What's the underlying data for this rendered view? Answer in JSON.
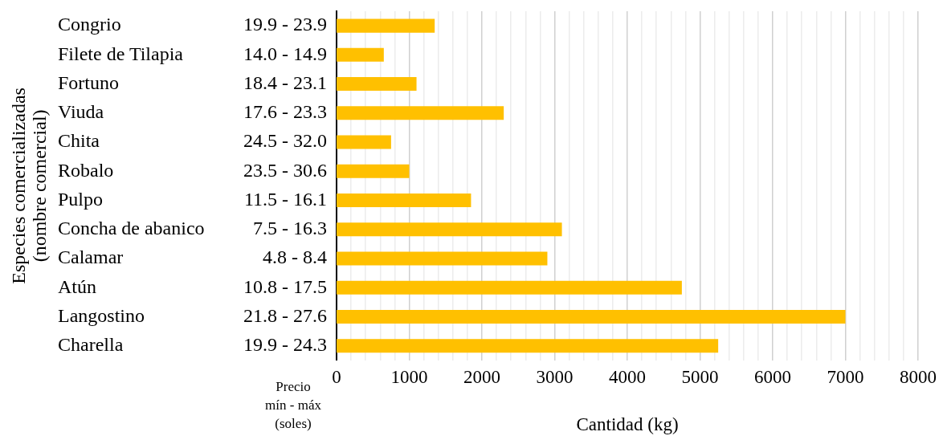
{
  "chart_data": {
    "type": "bar",
    "orientation": "horizontal",
    "xlabel": "Cantidad (kg)",
    "ylabel": "Especies comercializadas (nombre comercial)",
    "categories": [
      "Congrio",
      "Filete de Tilapia",
      "Fortuno",
      "Viuda",
      "Chita",
      "Robalo",
      "Pulpo",
      "Concha de abanico",
      "Calamar",
      "Atún",
      "Langostino",
      "Charella"
    ],
    "y2_categories": [
      "19.9 - 23.9",
      "14.0 - 14.9",
      "18.4 - 23.1",
      "17.6 - 23.3",
      "24.5 - 32.0",
      "23.5 - 30.6",
      "11.5 - 16.1",
      "7.5 - 16.3",
      "4.8 - 8.4",
      "10.8 - 17.5",
      "21.8 - 27.6",
      "19.9 - 24.3"
    ],
    "values": [
      1350,
      650,
      1100,
      2300,
      750,
      1000,
      1850,
      3100,
      2900,
      4750,
      7000,
      5250
    ],
    "color": "#ffc000",
    "xlim": [
      0,
      8000
    ],
    "xticks": [
      0,
      {
        "value": 200,
        "label": null
      },
      {
        "value": 400,
        "label": null
      },
      {
        "value": 600,
        "label": null
      },
      {
        "value": 800,
        "label": null
      },
      1000,
      {
        "value": 1200,
        "label": null
      },
      {
        "value": 1400,
        "label": null
      },
      {
        "value": 1600,
        "label": null
      },
      {
        "value": 1800,
        "label": null
      },
      2000,
      {
        "value": 2200,
        "label": null
      },
      {
        "value": 2400,
        "label": null
      },
      {
        "value": 2600,
        "label": null
      },
      {
        "value": 2800,
        "label": null
      },
      3000,
      {
        "value": 3200,
        "label": null
      },
      {
        "value": 3400,
        "label": null
      },
      {
        "value": 3600,
        "label": null
      },
      {
        "value": 3800,
        "label": null
      },
      4000,
      {
        "value": 4200,
        "label": null
      },
      {
        "value": 4400,
        "label": null
      },
      {
        "value": 4600,
        "label": null
      },
      {
        "value": 4800,
        "label": null
      },
      5000,
      {
        "value": 5200,
        "label": null
      },
      {
        "value": 5400,
        "label": null
      },
      {
        "value": 5600,
        "label": null
      },
      {
        "value": 5800,
        "label": null
      },
      6000,
      {
        "value": 6200,
        "label": null
      },
      {
        "value": 6400,
        "label": null
      },
      {
        "value": 6600,
        "label": null
      },
      {
        "value": 6800,
        "label": null
      },
      7000,
      {
        "value": 7200,
        "label": null
      },
      {
        "value": 7400,
        "label": null
      },
      {
        "value": 7600,
        "label": null
      },
      {
        "value": 7800,
        "label": null
      },
      8000
    ],
    "grid": "x",
    "legend": false,
    "annotations": [
      "Precio mín - máx (soles)"
    ]
  }
}
